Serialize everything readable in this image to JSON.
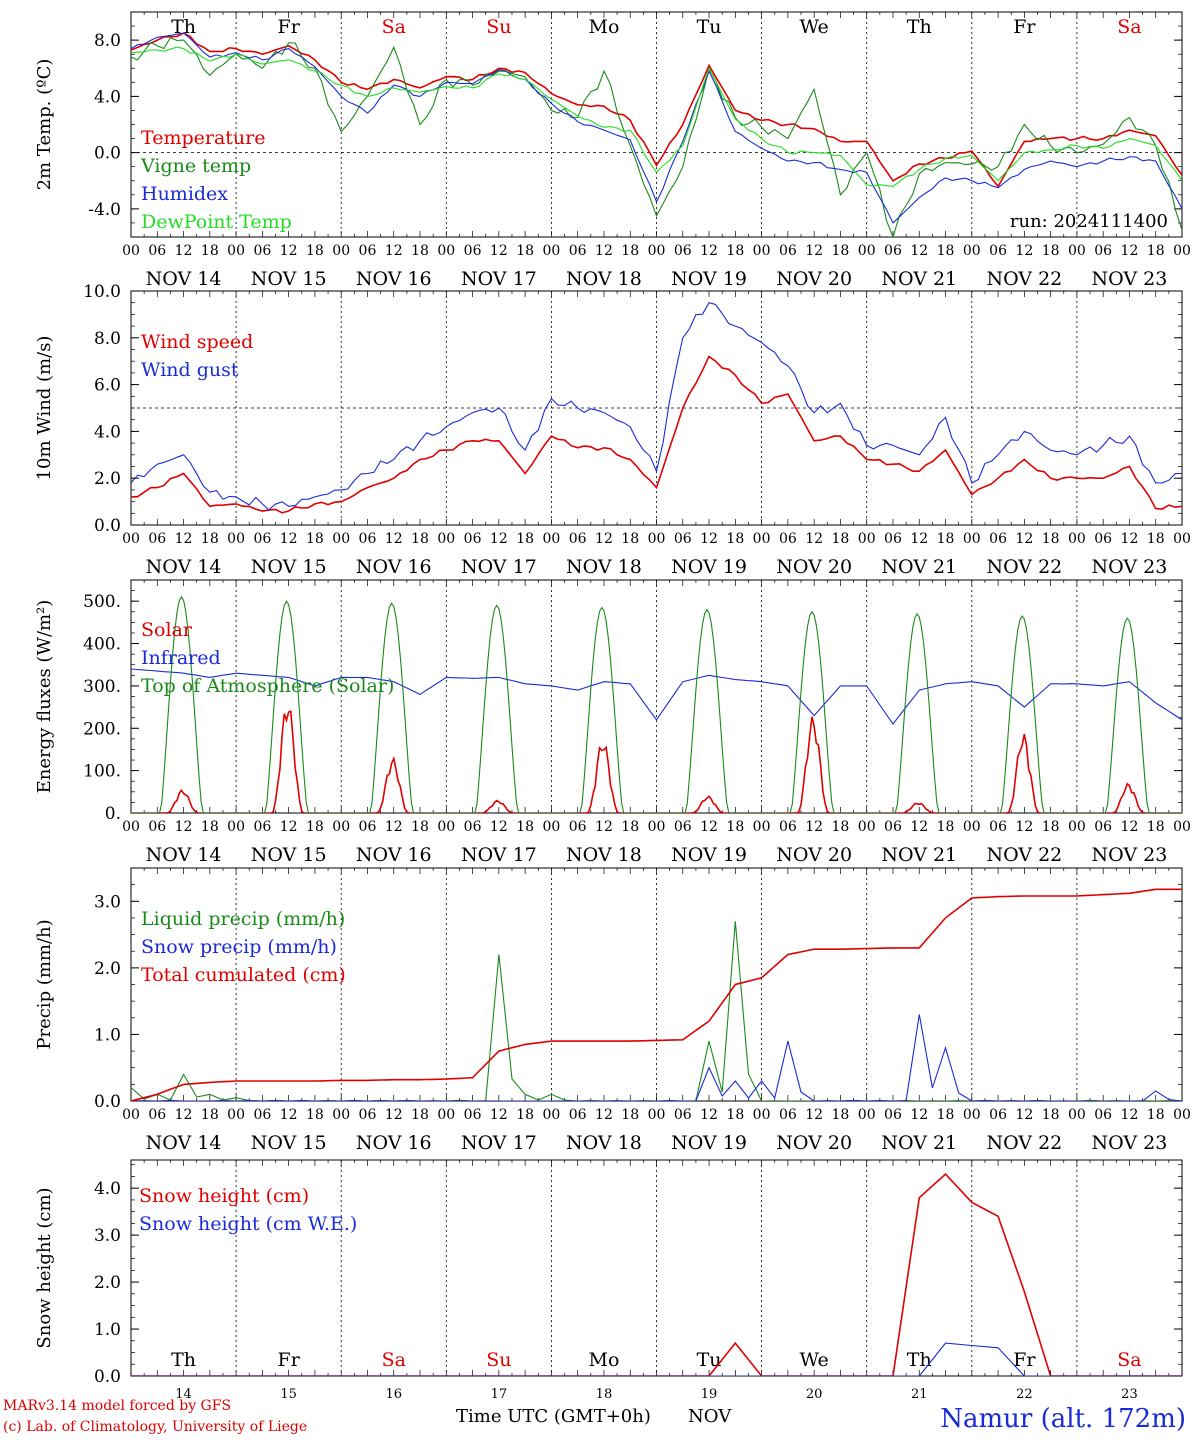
{
  "meteogram": {
    "run_label": "run: 2024111400",
    "date_labels": [
      "NOV 14",
      "NOV 15",
      "NOV 16",
      "NOV 17",
      "NOV 18",
      "NOV 19",
      "NOV 20",
      "NOV 21",
      "NOV 22",
      "NOV 23"
    ],
    "hour_labels": [
      "00",
      "06",
      "12",
      "18"
    ],
    "weekdays": [
      {
        "label": "Th",
        "color": "#000000"
      },
      {
        "label": "Fr",
        "color": "#000000"
      },
      {
        "label": "Sa",
        "color": "#e00000"
      },
      {
        "label": "Su",
        "color": "#e00000"
      },
      {
        "label": "Mo",
        "color": "#000000"
      },
      {
        "label": "Tu",
        "color": "#000000"
      },
      {
        "label": "We",
        "color": "#000000"
      },
      {
        "label": "Th",
        "color": "#000000"
      },
      {
        "label": "Fr",
        "color": "#000000"
      },
      {
        "label": "Sa",
        "color": "#e00000"
      }
    ],
    "bottom_day_numbers": [
      "14",
      "15",
      "16",
      "17",
      "18",
      "19",
      "20",
      "21",
      "22",
      "23"
    ],
    "x_axis_title": "Time UTC (GMT+0h)",
    "x_axis_month": "NOV",
    "credit_line1": "MARv3.14 model forced by GFS",
    "credit_line2": "(c) Lab. of Climatology, University of Liege",
    "station": "Namur (alt. 172m)",
    "colors": {
      "red": "#e00000",
      "darkgreen": "#1a8a1a",
      "blue": "#1a2ad8",
      "lightgreen": "#22dd22"
    }
  },
  "chart_data": [
    {
      "type": "line",
      "ylabel": "2m Temp. (ºC)",
      "ylim": [
        -6,
        10
      ],
      "yticks": [
        "8.0",
        "4.0",
        "0.0",
        "-4.0"
      ],
      "ytick_values": [
        8,
        4,
        0,
        -4
      ],
      "ref_line": 0,
      "x": [
        "11-14 00",
        "11-14 06",
        "11-14 12",
        "11-14 18",
        "11-15 00",
        "11-15 06",
        "11-15 12",
        "11-15 18",
        "11-16 00",
        "11-16 06",
        "11-16 12",
        "11-16 18",
        "11-17 00",
        "11-17 06",
        "11-17 12",
        "11-17 18",
        "11-18 00",
        "11-18 06",
        "11-18 12",
        "11-18 18",
        "11-19 00",
        "11-19 06",
        "11-19 12",
        "11-19 18",
        "11-20 00",
        "11-20 06",
        "11-20 12",
        "11-20 18",
        "11-21 00",
        "11-21 06",
        "11-21 12",
        "11-21 18",
        "11-22 00",
        "11-22 06",
        "11-22 12",
        "11-22 18",
        "11-23 00",
        "11-23 06",
        "11-23 12",
        "11-23 18",
        "11-24 00"
      ],
      "series": [
        {
          "name": "Temperature",
          "color": "#e00000",
          "values": [
            7.3,
            8.0,
            8.5,
            7.2,
            7.4,
            7.0,
            7.6,
            6.6,
            5.0,
            4.5,
            5.2,
            4.6,
            5.4,
            5.2,
            6.0,
            5.7,
            4.2,
            3.4,
            3.3,
            2.3,
            -0.9,
            2.0,
            6.2,
            3.0,
            2.3,
            2.0,
            1.7,
            0.8,
            0.8,
            -2.0,
            -0.8,
            -0.4,
            0.1,
            -2.4,
            0.8,
            1.0,
            1.0,
            1.0,
            1.6,
            1.2,
            -1.6
          ]
        },
        {
          "name": "Vigne temp",
          "color": "#1a8a1a",
          "values": [
            6.8,
            7.6,
            8.0,
            5.5,
            7.0,
            6.0,
            7.8,
            6.0,
            1.5,
            4.0,
            7.5,
            2.0,
            5.2,
            4.8,
            5.8,
            5.4,
            3.0,
            2.5,
            5.8,
            0.5,
            -4.5,
            -1.0,
            6.0,
            2.5,
            1.8,
            1.0,
            4.5,
            -3.0,
            0.0,
            -6.0,
            -1.5,
            -0.7,
            -0.8,
            -1.0,
            2.0,
            0.5,
            0.0,
            0.6,
            2.5,
            0.5,
            -5.5
          ]
        },
        {
          "name": "Humidex",
          "color": "#1a2ad8",
          "values": [
            7.4,
            8.2,
            8.5,
            6.8,
            7.1,
            6.6,
            7.4,
            6.1,
            4.0,
            2.8,
            4.8,
            4.0,
            5.0,
            4.9,
            5.9,
            5.2,
            3.5,
            2.2,
            1.6,
            0.9,
            -3.5,
            0.8,
            5.8,
            1.5,
            0.3,
            -0.6,
            -0.7,
            -1.2,
            -1.4,
            -5.0,
            -3.2,
            -1.8,
            -2.0,
            -2.5,
            -1.2,
            -0.6,
            -1.0,
            -0.6,
            -0.3,
            -0.6,
            -4.0
          ]
        },
        {
          "name": "DewPoint Temp",
          "color": "#22dd22",
          "values": [
            7.1,
            7.3,
            7.4,
            6.5,
            7.0,
            6.3,
            6.6,
            5.8,
            4.8,
            4.0,
            4.6,
            4.3,
            4.7,
            4.6,
            5.6,
            5.2,
            3.8,
            2.6,
            1.8,
            1.6,
            -1.4,
            0.5,
            6.0,
            2.4,
            1.0,
            0.0,
            0.0,
            -0.2,
            -2.3,
            -2.4,
            -1.2,
            -0.4,
            -0.2,
            -2.0,
            0.0,
            0.2,
            0.5,
            0.3,
            1.0,
            0.5,
            -2.0
          ]
        }
      ]
    },
    {
      "type": "line",
      "ylabel": "10m Wind (m/s)",
      "ylim": [
        0,
        10
      ],
      "yticks": [
        "10.0",
        "8.0",
        "6.0",
        "4.0",
        "2.0",
        "0.0"
      ],
      "ytick_values": [
        10,
        8,
        6,
        4,
        2,
        0
      ],
      "ref_line": 5,
      "x": [
        "11-14 00",
        "11-14 06",
        "11-14 12",
        "11-14 18",
        "11-15 00",
        "11-15 06",
        "11-15 12",
        "11-15 18",
        "11-16 00",
        "11-16 06",
        "11-16 12",
        "11-16 18",
        "11-17 00",
        "11-17 06",
        "11-17 12",
        "11-17 18",
        "11-18 00",
        "11-18 06",
        "11-18 12",
        "11-18 18",
        "11-19 00",
        "11-19 06",
        "11-19 12",
        "11-19 18",
        "11-20 00",
        "11-20 06",
        "11-20 12",
        "11-20 18",
        "11-21 00",
        "11-21 06",
        "11-21 12",
        "11-21 18",
        "11-22 00",
        "11-22 06",
        "11-22 12",
        "11-22 18",
        "11-23 00",
        "11-23 06",
        "11-23 12",
        "11-23 18",
        "11-24 00"
      ],
      "series": [
        {
          "name": "Wind speed",
          "color": "#e00000",
          "values": [
            1.2,
            1.6,
            2.2,
            0.8,
            0.9,
            0.6,
            0.6,
            0.9,
            1.0,
            1.6,
            2.0,
            2.8,
            3.2,
            3.6,
            3.6,
            2.2,
            3.8,
            3.3,
            3.3,
            2.8,
            1.6,
            5.0,
            7.2,
            6.4,
            5.2,
            5.6,
            3.6,
            3.8,
            2.8,
            2.6,
            2.3,
            3.2,
            1.3,
            2.0,
            2.8,
            2.0,
            2.0,
            2.0,
            2.5,
            0.7,
            0.8
          ]
        },
        {
          "name": "Wind gust",
          "color": "#1a2ad8",
          "values": [
            1.8,
            2.6,
            3.0,
            1.4,
            1.2,
            0.9,
            0.8,
            1.2,
            1.5,
            2.2,
            2.8,
            3.6,
            4.2,
            4.8,
            5.0,
            3.2,
            5.4,
            5.0,
            4.8,
            4.2,
            2.3,
            8.0,
            9.5,
            8.5,
            7.8,
            6.8,
            4.8,
            5.2,
            3.4,
            3.4,
            3.0,
            4.6,
            1.8,
            3.0,
            4.0,
            3.2,
            3.0,
            3.4,
            3.8,
            1.8,
            2.2
          ]
        }
      ]
    },
    {
      "type": "line",
      "ylabel": "Energy fluxes (W/m²)",
      "ylim": [
        0,
        550
      ],
      "yticks": [
        "500.",
        "400.",
        "300.",
        "200.",
        "100.",
        "0."
      ],
      "ytick_values": [
        500,
        400,
        300,
        200,
        100,
        0
      ],
      "daily_peaks": {
        "Solar": [
          55,
          270,
          130,
          30,
          175,
          40,
          230,
          25,
          190,
          70
        ],
        "Top of Atmosphere (Solar)": [
          510,
          500,
          495,
          490,
          485,
          480,
          475,
          470,
          465,
          460
        ]
      },
      "series": [
        {
          "name": "Solar",
          "color": "#e00000"
        },
        {
          "name": "Infrared",
          "color": "#1a2ad8",
          "values": [
            340,
            335,
            330,
            320,
            330,
            325,
            320,
            300,
            320,
            320,
            310,
            280,
            320,
            318,
            320,
            305,
            300,
            290,
            310,
            305,
            220,
            310,
            325,
            315,
            310,
            300,
            230,
            300,
            300,
            210,
            290,
            305,
            310,
            300,
            250,
            305,
            305,
            300,
            310,
            260,
            220
          ]
        },
        {
          "name": "Top of Atmosphere (Solar)",
          "color": "#1a8a1a"
        }
      ]
    },
    {
      "type": "line",
      "ylabel": "Precip (mm/h)",
      "ylim": [
        0,
        3.5
      ],
      "yticks": [
        "3.0",
        "2.0",
        "1.0",
        "0.0"
      ],
      "ytick_values": [
        3,
        2,
        1,
        0
      ],
      "x": [
        "11-14 00",
        "11-14 06",
        "11-14 12",
        "11-14 18",
        "11-15 00",
        "11-15 06",
        "11-15 12",
        "11-15 18",
        "11-16 00",
        "11-16 06",
        "11-16 12",
        "11-16 18",
        "11-17 00",
        "11-17 06",
        "11-17 12",
        "11-17 18",
        "11-18 00",
        "11-18 06",
        "11-18 12",
        "11-18 18",
        "11-19 00",
        "11-19 06",
        "11-19 12",
        "11-19 18",
        "11-20 00",
        "11-20 06",
        "11-20 12",
        "11-20 18",
        "11-21 00",
        "11-21 06",
        "11-21 12",
        "11-21 18",
        "11-22 00",
        "11-22 06",
        "11-22 12",
        "11-22 18",
        "11-23 00",
        "11-23 06",
        "11-23 12",
        "11-23 18",
        "11-24 00"
      ],
      "series": [
        {
          "name": "Liquid precip (mm/h)",
          "color": "#1a8a1a",
          "values": [
            0.2,
            0.1,
            0.4,
            0.1,
            0.05,
            0,
            0,
            0,
            0,
            0,
            0,
            0,
            0,
            0,
            2.2,
            0.1,
            0.1,
            0,
            0,
            0,
            0,
            0,
            0.9,
            2.7,
            0,
            0,
            0,
            0,
            0,
            0,
            0,
            0,
            0,
            0,
            0,
            0,
            0,
            0,
            0,
            0,
            0
          ]
        },
        {
          "name": "Snow precip (mm/h)",
          "color": "#1a2ad8",
          "values": [
            0,
            0,
            0,
            0,
            0,
            0,
            0,
            0,
            0,
            0,
            0,
            0,
            0,
            0,
            0,
            0,
            0,
            0,
            0,
            0,
            0,
            0,
            0.5,
            0.3,
            0.3,
            0.9,
            0,
            0,
            0,
            0,
            1.3,
            0.8,
            0,
            0,
            0,
            0,
            0,
            0,
            0,
            0.15,
            0
          ]
        },
        {
          "name": "Total cumulated (cm)",
          "color": "#e00000",
          "values": [
            0,
            0.1,
            0.25,
            0.28,
            0.3,
            0.3,
            0.3,
            0.3,
            0.31,
            0.31,
            0.32,
            0.32,
            0.33,
            0.35,
            0.75,
            0.85,
            0.9,
            0.9,
            0.9,
            0.9,
            0.91,
            0.92,
            1.2,
            1.75,
            1.85,
            2.2,
            2.28,
            2.28,
            2.29,
            2.3,
            2.3,
            2.75,
            3.05,
            3.07,
            3.08,
            3.08,
            3.08,
            3.1,
            3.12,
            3.18,
            3.18
          ]
        }
      ]
    },
    {
      "type": "line",
      "ylabel": "Snow height (cm)",
      "ylim": [
        0,
        4.6
      ],
      "yticks": [
        "4.0",
        "3.0",
        "2.0",
        "1.0",
        "0.0"
      ],
      "ytick_values": [
        4,
        3,
        2,
        1,
        0
      ],
      "x": [
        "11-14 00",
        "11-14 06",
        "11-14 12",
        "11-14 18",
        "11-15 00",
        "11-15 06",
        "11-15 12",
        "11-15 18",
        "11-16 00",
        "11-16 06",
        "11-16 12",
        "11-16 18",
        "11-17 00",
        "11-17 06",
        "11-17 12",
        "11-17 18",
        "11-18 00",
        "11-18 06",
        "11-18 12",
        "11-18 18",
        "11-19 00",
        "11-19 06",
        "11-19 12",
        "11-19 18",
        "11-20 00",
        "11-20 06",
        "11-20 12",
        "11-20 18",
        "11-21 00",
        "11-21 06",
        "11-21 12",
        "11-21 18",
        "11-22 00",
        "11-22 06",
        "11-22 12",
        "11-22 18",
        "11-23 00",
        "11-23 06",
        "11-23 12",
        "11-23 18",
        "11-24 00"
      ],
      "series": [
        {
          "name": "Snow height (cm)",
          "color": "#e00000",
          "values": [
            0,
            0,
            0,
            0,
            0,
            0,
            0,
            0,
            0,
            0,
            0,
            0,
            0,
            0,
            0,
            0,
            0,
            0,
            0,
            0,
            0,
            0,
            0,
            0.7,
            0,
            0,
            0,
            0,
            0,
            0,
            3.8,
            4.3,
            3.7,
            3.4,
            1.8,
            0,
            0,
            0,
            0,
            0,
            0
          ]
        },
        {
          "name": "Snow height (cm W.E.)",
          "color": "#1a2ad8",
          "values": [
            0,
            0,
            0,
            0,
            0,
            0,
            0,
            0,
            0,
            0,
            0,
            0,
            0,
            0,
            0,
            0,
            0,
            0,
            0,
            0,
            0,
            0,
            0,
            0,
            0,
            0,
            0,
            0,
            0,
            0,
            0,
            0.7,
            0.65,
            0.6,
            0,
            0,
            0,
            0,
            0,
            0,
            0
          ]
        }
      ]
    }
  ]
}
